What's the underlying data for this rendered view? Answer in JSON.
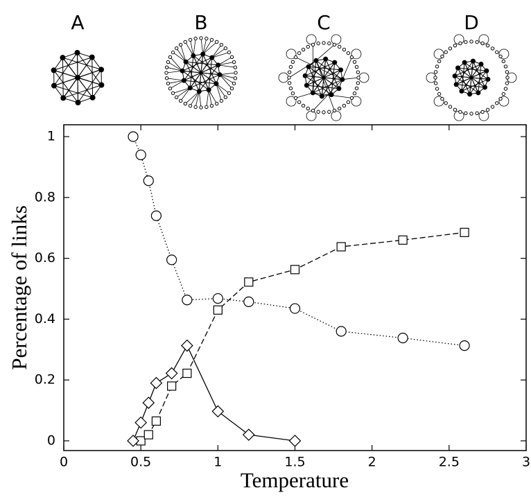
{
  "chart_data": {
    "type": "line",
    "panels": [
      "A",
      "B",
      "C",
      "D"
    ],
    "x_label": "Temperature",
    "y_label": "Percentage of links",
    "xlim": [
      0,
      3
    ],
    "ylim": [
      -0.032,
      1.039
    ],
    "xticks": [
      0,
      0.5,
      1,
      1.5,
      2,
      2.5,
      3
    ],
    "yticks": [
      0,
      0.2,
      0.4,
      0.6,
      0.8,
      1
    ],
    "series": [
      {
        "color": "#000000",
        "marker": "circle",
        "dash": "dotted",
        "x": [
          0.45,
          0.5,
          0.55,
          0.6,
          0.7,
          0.8,
          1.0,
          1.2,
          1.5,
          1.8,
          2.2,
          2.6
        ],
        "values": [
          1.0,
          0.94,
          0.855,
          0.74,
          0.595,
          0.463,
          0.468,
          0.457,
          0.435,
          0.36,
          0.338,
          0.313
        ]
      },
      {
        "color": "#000000",
        "marker": "square",
        "dash": "dashed",
        "x": [
          0.5,
          0.55,
          0.6,
          0.7,
          0.8,
          1.0,
          1.2,
          1.5,
          1.8,
          2.2,
          2.6
        ],
        "values": [
          0.0,
          0.02,
          0.065,
          0.18,
          0.222,
          0.43,
          0.522,
          0.563,
          0.638,
          0.66,
          0.685
        ]
      },
      {
        "color": "#000000",
        "marker": "diamond",
        "dash": "solid",
        "x": [
          0.45,
          0.5,
          0.55,
          0.6,
          0.7,
          0.8,
          1.0,
          1.2,
          1.5
        ],
        "values": [
          0.0,
          0.06,
          0.125,
          0.19,
          0.222,
          0.313,
          0.097,
          0.02,
          0.0
        ]
      }
    ]
  }
}
